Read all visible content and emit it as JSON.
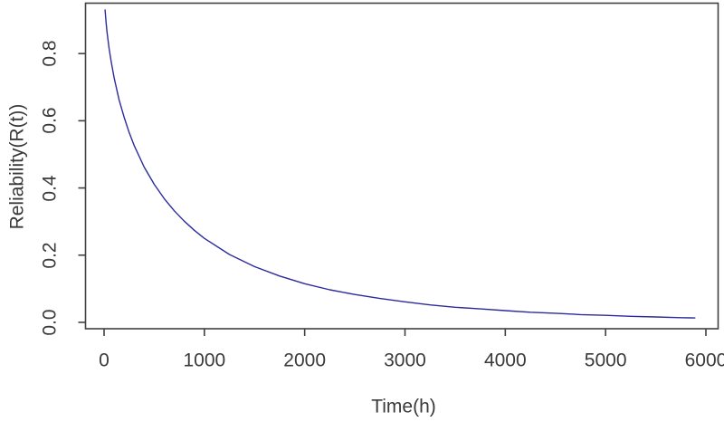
{
  "figure": {
    "background": "#ffffff"
  },
  "chart_data": {
    "type": "line",
    "title": "",
    "xlabel": "Time(h)",
    "ylabel": "Reliability(R(t))",
    "xlim": [
      -185,
      6122
    ],
    "ylim": [
      -0.019,
      0.95
    ],
    "grid": false,
    "legend": null,
    "box_frame": true,
    "x_ticks": {
      "values": [
        0,
        1000,
        2000,
        3000,
        4000,
        5000,
        6000
      ],
      "labels": [
        "0",
        "1000",
        "2000",
        "3000",
        "4000",
        "5000",
        "6000"
      ]
    },
    "y_ticks": {
      "values": [
        0.0,
        0.2,
        0.4,
        0.6,
        0.8
      ],
      "labels": [
        "0.0",
        "0.2",
        "0.4",
        "0.6",
        "0.8"
      ]
    },
    "colors": {
      "line": "#2b2b9d",
      "axis": "#404040",
      "text": "#3a3a3a",
      "background": "#ffffff"
    },
    "series": [
      {
        "name": "Reliability R(t)",
        "points": [
          [
            10,
            0.93
          ],
          [
            20,
            0.893
          ],
          [
            30,
            0.863
          ],
          [
            50,
            0.816
          ],
          [
            70,
            0.777
          ],
          [
            100,
            0.728
          ],
          [
            150,
            0.662
          ],
          [
            200,
            0.61
          ],
          [
            250,
            0.565
          ],
          [
            300,
            0.526
          ],
          [
            400,
            0.462
          ],
          [
            500,
            0.411
          ],
          [
            600,
            0.368
          ],
          [
            700,
            0.332
          ],
          [
            800,
            0.301
          ],
          [
            900,
            0.274
          ],
          [
            1000,
            0.25
          ],
          [
            1250,
            0.202
          ],
          [
            1500,
            0.166
          ],
          [
            1750,
            0.138
          ],
          [
            2000,
            0.115
          ],
          [
            2250,
            0.097
          ],
          [
            2500,
            0.083
          ],
          [
            2750,
            0.071
          ],
          [
            3000,
            0.061
          ],
          [
            3250,
            0.052
          ],
          [
            3500,
            0.045
          ],
          [
            3750,
            0.04
          ],
          [
            4000,
            0.035
          ],
          [
            4250,
            0.03
          ],
          [
            4500,
            0.027
          ],
          [
            4750,
            0.023
          ],
          [
            5000,
            0.021
          ],
          [
            5250,
            0.018
          ],
          [
            5500,
            0.016
          ],
          [
            5750,
            0.014
          ],
          [
            5890,
            0.013
          ]
        ]
      }
    ]
  }
}
